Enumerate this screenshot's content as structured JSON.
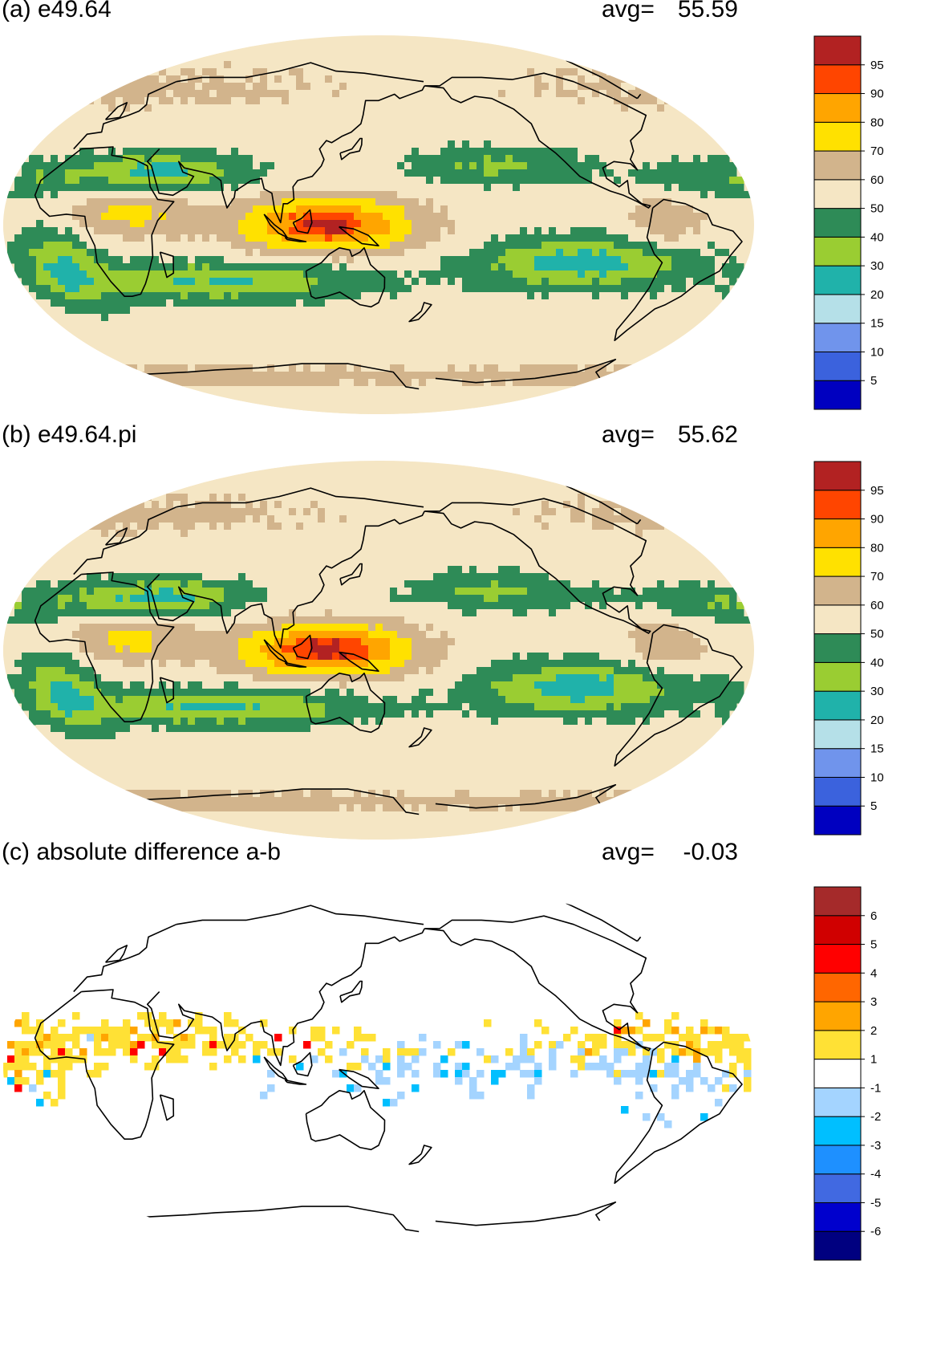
{
  "panels": [
    {
      "label": "(a) e49.64",
      "avg_label": "avg=",
      "avg_value": "55.59",
      "style": "field",
      "colorbar": {
        "colors": [
          "#0000c0",
          "#3b62dd",
          "#7094ec",
          "#b5e0e8",
          "#20b2aa",
          "#9acd32",
          "#2e8b57",
          "#f5e6c4",
          "#d2b48c",
          "#ffe100",
          "#ffa500",
          "#ff4500",
          "#b22222"
        ],
        "ticks": [
          "5",
          "10",
          "15",
          "20",
          "30",
          "40",
          "50",
          "60",
          "70",
          "80",
          "90",
          "95"
        ]
      }
    },
    {
      "label": "(b) e49.64.pi",
      "avg_label": "avg=",
      "avg_value": "55.62",
      "style": "field",
      "colorbar": {
        "colors": [
          "#0000c0",
          "#3b62dd",
          "#7094ec",
          "#b5e0e8",
          "#20b2aa",
          "#9acd32",
          "#2e8b57",
          "#f5e6c4",
          "#d2b48c",
          "#ffe100",
          "#ffa500",
          "#ff4500",
          "#b22222"
        ],
        "ticks": [
          "5",
          "10",
          "15",
          "20",
          "30",
          "40",
          "50",
          "60",
          "70",
          "80",
          "90",
          "95"
        ]
      }
    },
    {
      "label": "(c) absolute difference a-b",
      "avg_label": "avg=",
      "avg_value": "-0.03",
      "style": "diff",
      "colorbar": {
        "colors": [
          "#000080",
          "#0000cd",
          "#4169e1",
          "#1e90ff",
          "#00bfff",
          "#a4d4ff",
          "#ffffff",
          "#ffe135",
          "#ffa500",
          "#ff6600",
          "#ff0000",
          "#d00000",
          "#a52a2a"
        ],
        "ticks": [
          "-6",
          "-5",
          "-4",
          "-3",
          "-2",
          "-1",
          "1",
          "2",
          "3",
          "4",
          "5",
          "6"
        ]
      }
    }
  ]
}
